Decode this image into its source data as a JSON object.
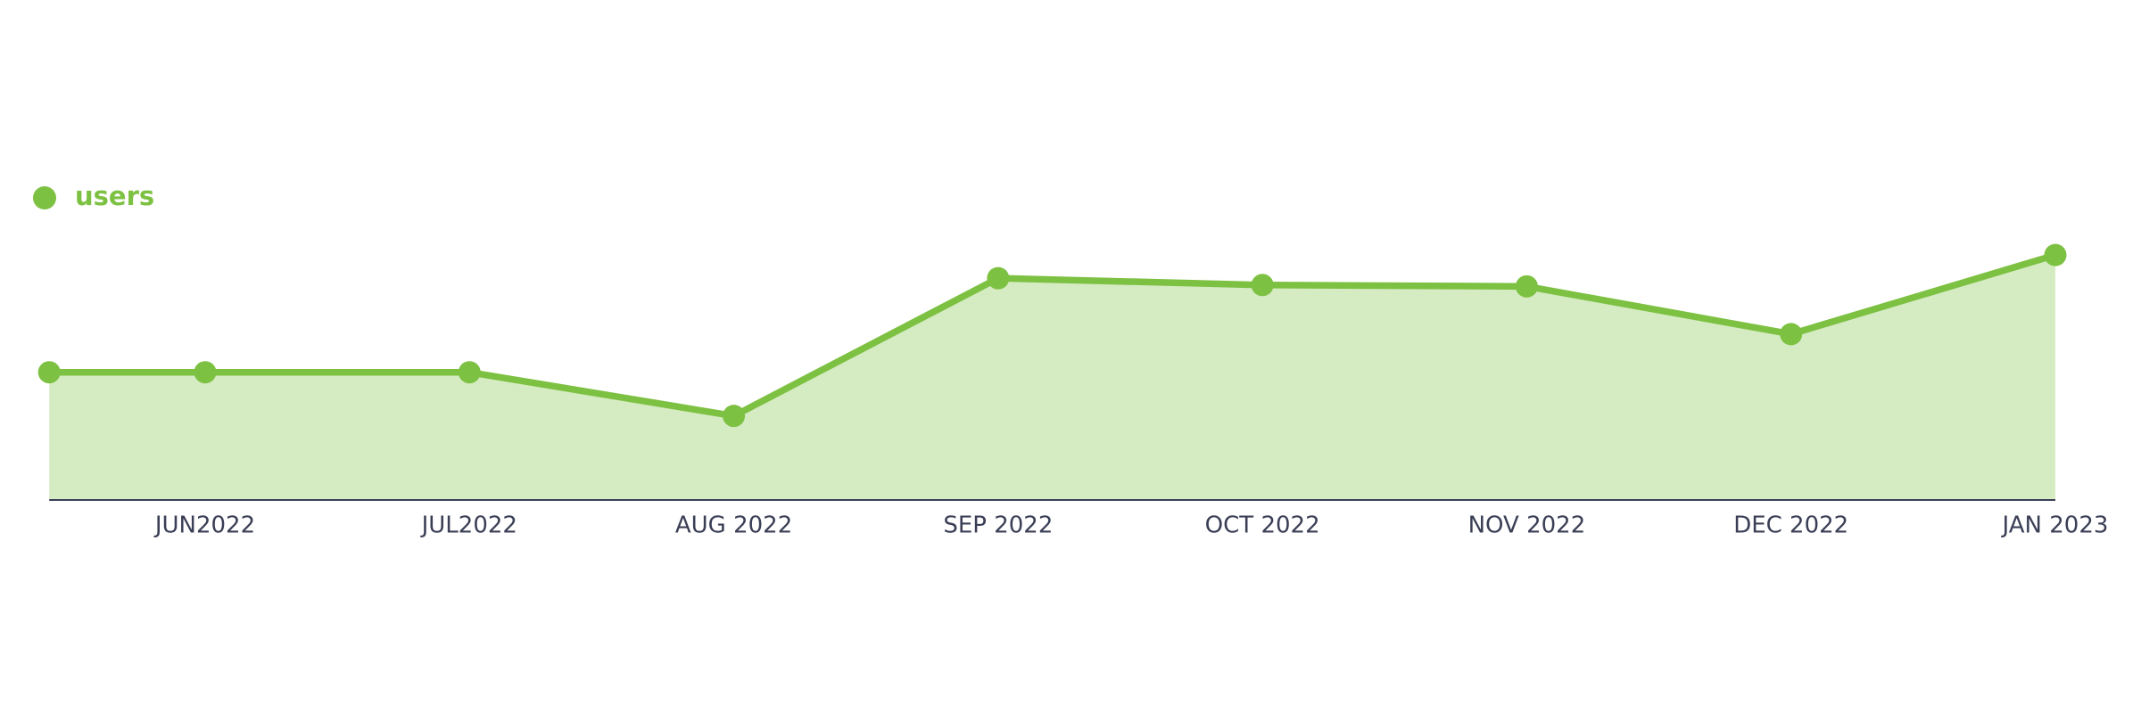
{
  "chart_data": {
    "type": "area",
    "categories": [
      null,
      "JUN2022",
      "JUL2022",
      "AUG 2022",
      "SEP 2022",
      "OCT 2022",
      "NOV 2022",
      "DEC 2022",
      "JAN 2023"
    ],
    "series": [
      {
        "name": "users",
        "color": "#7dc142",
        "values": [
          93,
          93,
          93,
          61,
          162,
          157,
          156,
          121,
          179
        ]
      }
    ],
    "ylim": [
      0,
      200
    ],
    "legend": "top-left"
  }
}
